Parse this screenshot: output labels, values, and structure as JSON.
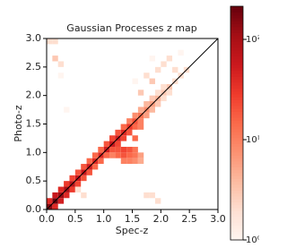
{
  "chart_data": {
    "type": "heatmap",
    "title": "Gaussian Processes z map",
    "xlabel": "Spec-z",
    "ylabel": "Photo-z",
    "bin_width": 0.1,
    "x": [
      0.05,
      0.15,
      0.25,
      0.35,
      0.45,
      0.55,
      0.65,
      0.75,
      0.85,
      0.95,
      1.05,
      1.15,
      1.25,
      1.35,
      1.45,
      1.55,
      1.65,
      1.75,
      1.85,
      1.95,
      2.05,
      2.15,
      2.25,
      2.35,
      2.45,
      0.05,
      0.15,
      0.25,
      0.35,
      0.45,
      0.55,
      0.65,
      0.75,
      0.85,
      0.95,
      1.05,
      1.15,
      1.25,
      1.35,
      1.45,
      1.55,
      1.65,
      1.75,
      1.85,
      1.95,
      2.05,
      0.15,
      0.25,
      0.35,
      0.45,
      0.55,
      0.65,
      0.75,
      0.85,
      0.95,
      1.05,
      1.15,
      1.25,
      1.35,
      1.45,
      1.55,
      1.65,
      1.75,
      1.85,
      1.95,
      2.05,
      2.15,
      1.25,
      1.35,
      1.45,
      1.35,
      1.45,
      1.55,
      1.45,
      1.55,
      1.65,
      1.55,
      1.65,
      1.25,
      1.35,
      1.15,
      1.55,
      1.45,
      1.35,
      1.65,
      1.65,
      1.85,
      1.95,
      2.05,
      2.15,
      1.75,
      2.25,
      1.55,
      2.35,
      1.85,
      2.05,
      0.15,
      0.25,
      0.05,
      0.15,
      0.25,
      0.35,
      1.75,
      1.85,
      1.95,
      0.55,
      0.65
    ],
    "y": [
      0.05,
      0.15,
      0.25,
      0.35,
      0.45,
      0.55,
      0.65,
      0.75,
      0.85,
      0.95,
      1.05,
      1.15,
      1.25,
      1.35,
      1.45,
      1.55,
      1.65,
      1.75,
      1.85,
      1.95,
      2.05,
      2.15,
      2.25,
      2.35,
      2.45,
      0.15,
      0.25,
      0.35,
      0.45,
      0.55,
      0.65,
      0.75,
      0.85,
      0.95,
      1.05,
      1.15,
      1.25,
      1.35,
      1.45,
      1.55,
      1.65,
      1.75,
      1.85,
      1.95,
      2.05,
      2.15,
      0.05,
      0.15,
      0.25,
      0.35,
      0.45,
      0.55,
      0.65,
      0.75,
      0.85,
      0.95,
      1.05,
      1.15,
      1.25,
      1.35,
      1.45,
      1.55,
      1.65,
      1.75,
      1.85,
      1.95,
      2.05,
      0.95,
      0.95,
      0.95,
      1.05,
      1.05,
      1.05,
      0.85,
      0.85,
      0.85,
      0.95,
      0.95,
      1.05,
      0.85,
      0.95,
      1.25,
      1.35,
      1.45,
      1.45,
      2.05,
      2.25,
      2.45,
      2.55,
      2.65,
      2.35,
      2.45,
      2.25,
      2.75,
      2.65,
      2.15,
      2.65,
      2.55,
      2.95,
      2.95,
      2.35,
      1.75,
      0.25,
      0.25,
      0.15,
      0.35,
      0.25
    ],
    "values": [
      150,
      200,
      120,
      100,
      80,
      60,
      60,
      50,
      40,
      40,
      50,
      60,
      50,
      40,
      30,
      20,
      12,
      8,
      6,
      4,
      3,
      3,
      2,
      2,
      2,
      40,
      60,
      40,
      30,
      25,
      20,
      20,
      15,
      15,
      15,
      20,
      25,
      20,
      15,
      10,
      8,
      5,
      4,
      3,
      2,
      2,
      40,
      50,
      40,
      30,
      25,
      20,
      20,
      15,
      15,
      15,
      20,
      25,
      25,
      20,
      15,
      10,
      6,
      4,
      3,
      2,
      2,
      15,
      20,
      15,
      25,
      20,
      12,
      10,
      8,
      5,
      12,
      6,
      20,
      10,
      10,
      15,
      20,
      15,
      10,
      3,
      3,
      2,
      2,
      2,
      2,
      2,
      1,
      1,
      1,
      2,
      3,
      2,
      2,
      2,
      1,
      1,
      2,
      2,
      2,
      2,
      2
    ],
    "xlim": [
      0,
      3
    ],
    "ylim": [
      0,
      3
    ],
    "xticks": [
      {
        "value": 0,
        "label": "0.0"
      },
      0.5,
      {
        "value": 1,
        "label": "1.0"
      },
      1.5,
      {
        "value": 2,
        "label": "2.0"
      },
      2.5,
      {
        "value": 3,
        "label": "3.0"
      }
    ],
    "yticks": [
      {
        "value": 0,
        "label": "0.0"
      },
      0.5,
      {
        "value": 1,
        "label": "1.0"
      },
      1.5,
      {
        "value": 2,
        "label": "2.0"
      },
      2.5,
      {
        "value": 3,
        "label": "3.0"
      }
    ],
    "colormap": "Reds",
    "color_scale": "log",
    "clim": [
      1,
      214
    ],
    "cticks": [
      {
        "value": 1,
        "label": "10⁰"
      },
      {
        "value": 10,
        "label": "10¹"
      },
      {
        "value": 100,
        "label": "10²"
      }
    ],
    "diagonal": true
  }
}
